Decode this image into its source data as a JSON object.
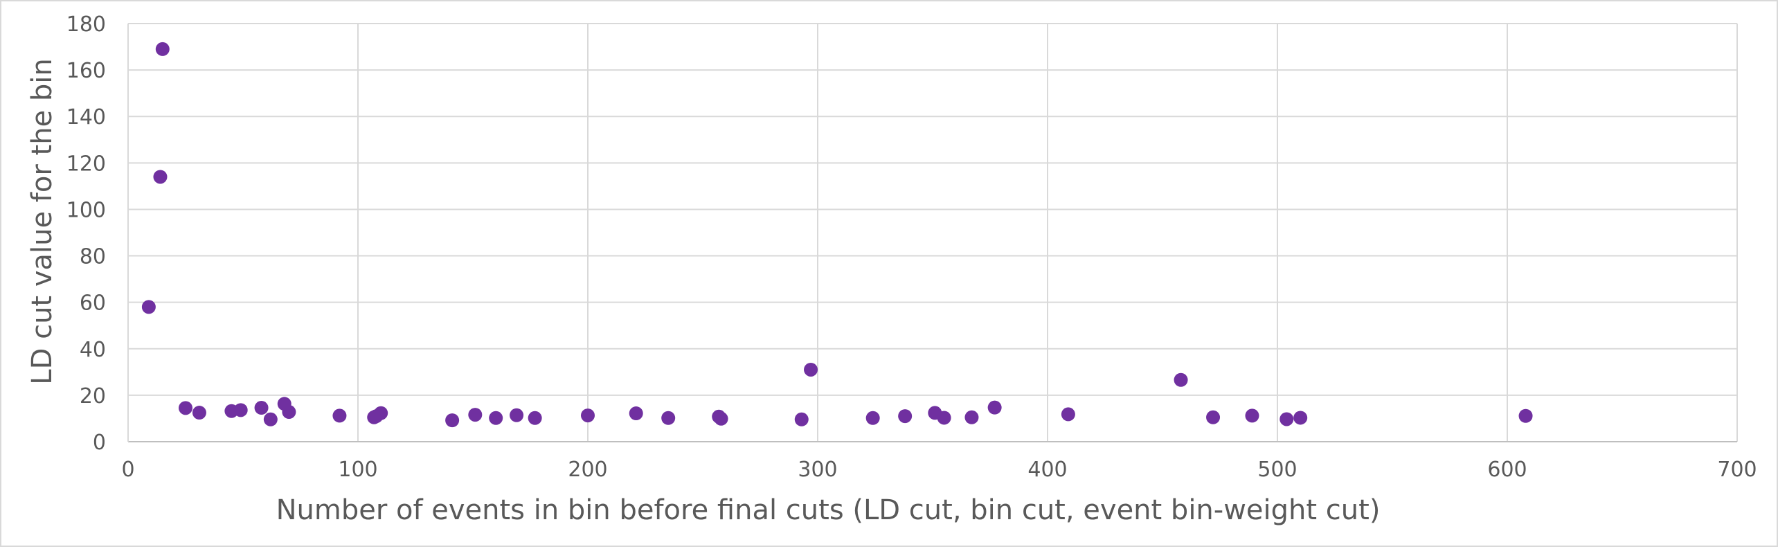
{
  "chart_data": {
    "type": "scatter",
    "xlabel": "Number of events in bin before final cuts (LD cut, bin cut, event bin-weight cut)",
    "ylabel": "LD cut value for the bin",
    "xlim": [
      0,
      700
    ],
    "ylim": [
      0,
      180
    ],
    "xticks": [
      0,
      100,
      200,
      300,
      400,
      500,
      600,
      700
    ],
    "yticks": [
      0,
      20,
      40,
      60,
      80,
      100,
      120,
      140,
      160,
      180
    ],
    "grid": true,
    "legend": "none",
    "marker_color": "#7030a0",
    "series": [
      {
        "points": [
          [
            9,
            58
          ],
          [
            14,
            114
          ],
          [
            15,
            169
          ],
          [
            25,
            14.5
          ],
          [
            31,
            12.5
          ],
          [
            45,
            13.2
          ],
          [
            49,
            13.6
          ],
          [
            58,
            14.6
          ],
          [
            62,
            9.6
          ],
          [
            68,
            16.3
          ],
          [
            70,
            12.8
          ],
          [
            92,
            11.2
          ],
          [
            107,
            10.5
          ],
          [
            108,
            11
          ],
          [
            110,
            12.3
          ],
          [
            141,
            9.2
          ],
          [
            151,
            11.6
          ],
          [
            160,
            10.2
          ],
          [
            169,
            11.4
          ],
          [
            177,
            10.2
          ],
          [
            200,
            11.3
          ],
          [
            221,
            12.2
          ],
          [
            235,
            10.2
          ],
          [
            257,
            10.8
          ],
          [
            258,
            9.9
          ],
          [
            293,
            9.6
          ],
          [
            297,
            31
          ],
          [
            324,
            10.2
          ],
          [
            338,
            11
          ],
          [
            351,
            12.4
          ],
          [
            355,
            10.3
          ],
          [
            367,
            10.5
          ],
          [
            377,
            14.7
          ],
          [
            409,
            11.8
          ],
          [
            458,
            26.6
          ],
          [
            472,
            10.5
          ],
          [
            489,
            11.2
          ],
          [
            504,
            9.7
          ],
          [
            510,
            10.3
          ],
          [
            608,
            11.1
          ]
        ]
      }
    ]
  }
}
